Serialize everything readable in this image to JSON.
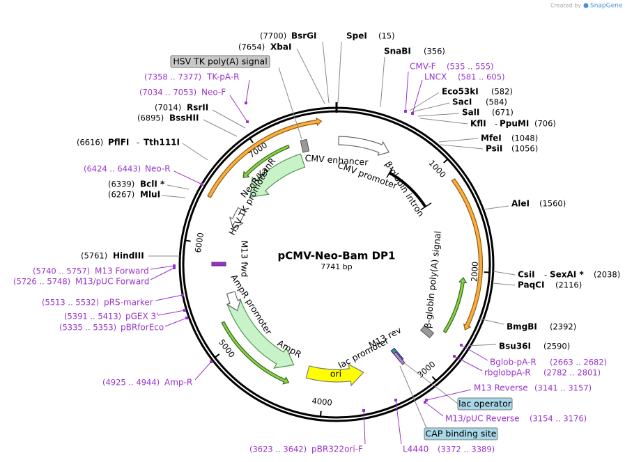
{
  "branding": {
    "prefix": "Created by",
    "name": "SnapGene"
  },
  "plasmid": {
    "name": "pCMV-Neo-Bam DP1",
    "length": "7741 bp"
  },
  "ruler": [
    1000,
    2000,
    3000,
    4000,
    5000,
    6000,
    7000
  ],
  "features": [
    "CMV enhancer",
    "CMV promoter",
    "β-globin intron",
    "β-globin poly(A) signal",
    "ori",
    "AmpR",
    "AmpR promoter",
    "lac promoter",
    "M13 rev",
    "M13 fwd",
    "HSV TK promoter",
    "NeoR/KanR"
  ],
  "boxed_features": [
    "HSV TK poly(A) signal",
    "lac operator",
    "CAP binding site"
  ],
  "sites": [
    {
      "name": "BsrGI",
      "position": "(7700)"
    },
    {
      "name": "XbaI",
      "position": "(7654)"
    },
    {
      "name": "SpeI",
      "position": "(15)"
    },
    {
      "name": "SnaBI",
      "position": "(356)"
    },
    {
      "name": "Eco53kI",
      "position": "(582)"
    },
    {
      "name": "SacI",
      "position": "(584)"
    },
    {
      "name": "SalI",
      "position": "(671)"
    },
    {
      "name": "KflI",
      "joiner": "-",
      "name2": "PpuMI",
      "position": "(706)"
    },
    {
      "name": "MfeI",
      "position": "(1048)"
    },
    {
      "name": "PsiI",
      "position": "(1056)"
    },
    {
      "name": "AleI",
      "position": "(1560)"
    },
    {
      "name": "CsiI",
      "joiner": "-",
      "name2": "SexAI *",
      "position": "(2038)"
    },
    {
      "name": "PaqCI",
      "position": "(2116)"
    },
    {
      "name": "BmgBI",
      "position": "(2392)"
    },
    {
      "name": "Bsu36I",
      "position": "(2590)"
    },
    {
      "name": "RsrII",
      "position": "(7014)"
    },
    {
      "name": "BssHII",
      "position": "(6895)"
    },
    {
      "name": "PflFI",
      "joiner": "-",
      "name2": "Tth111I",
      "position": "(6616)"
    },
    {
      "name": "BclI *",
      "position": "(6339)"
    },
    {
      "name": "MluI",
      "position": "(6267)"
    },
    {
      "name": "HindIII",
      "position": "(5761)"
    }
  ],
  "primers": [
    {
      "name": "CMV-F",
      "range": "(535 .. 555)"
    },
    {
      "name": "LNCX",
      "range": "(581 .. 605)"
    },
    {
      "name": "Bglob-pA-R",
      "range": "(2663 .. 2682)"
    },
    {
      "name": "rbglobpA-R",
      "range": "(2782 .. 2801)"
    },
    {
      "name": "M13 Reverse",
      "range": "(3141 .. 3157)"
    },
    {
      "name": "M13/pUC Reverse",
      "range": "(3154 .. 3176)"
    },
    {
      "name": "L4440",
      "range": "(3372 .. 3389)"
    },
    {
      "name": "pBR322ori-F",
      "range": "(3623 .. 3642)"
    },
    {
      "name": "TK-pA-R",
      "range": "(7358 .. 7377)"
    },
    {
      "name": "Neo-F",
      "range": "(7034 .. 7053)"
    },
    {
      "name": "Neo-R",
      "range": "(6424 .. 6443)"
    },
    {
      "name": "M13 Forward",
      "range": "(5740 .. 5757)"
    },
    {
      "name": "M13/pUC Forward",
      "range": "(5726 .. 5748)"
    },
    {
      "name": "pRS-marker",
      "range": "(5513 .. 5532)"
    },
    {
      "name": "pGEX 3'",
      "range": "(5391 .. 5413)"
    },
    {
      "name": "pBRforEco",
      "range": "(5335 .. 5353)"
    },
    {
      "name": "Amp-R",
      "range": "(4925 .. 4944)"
    }
  ]
}
